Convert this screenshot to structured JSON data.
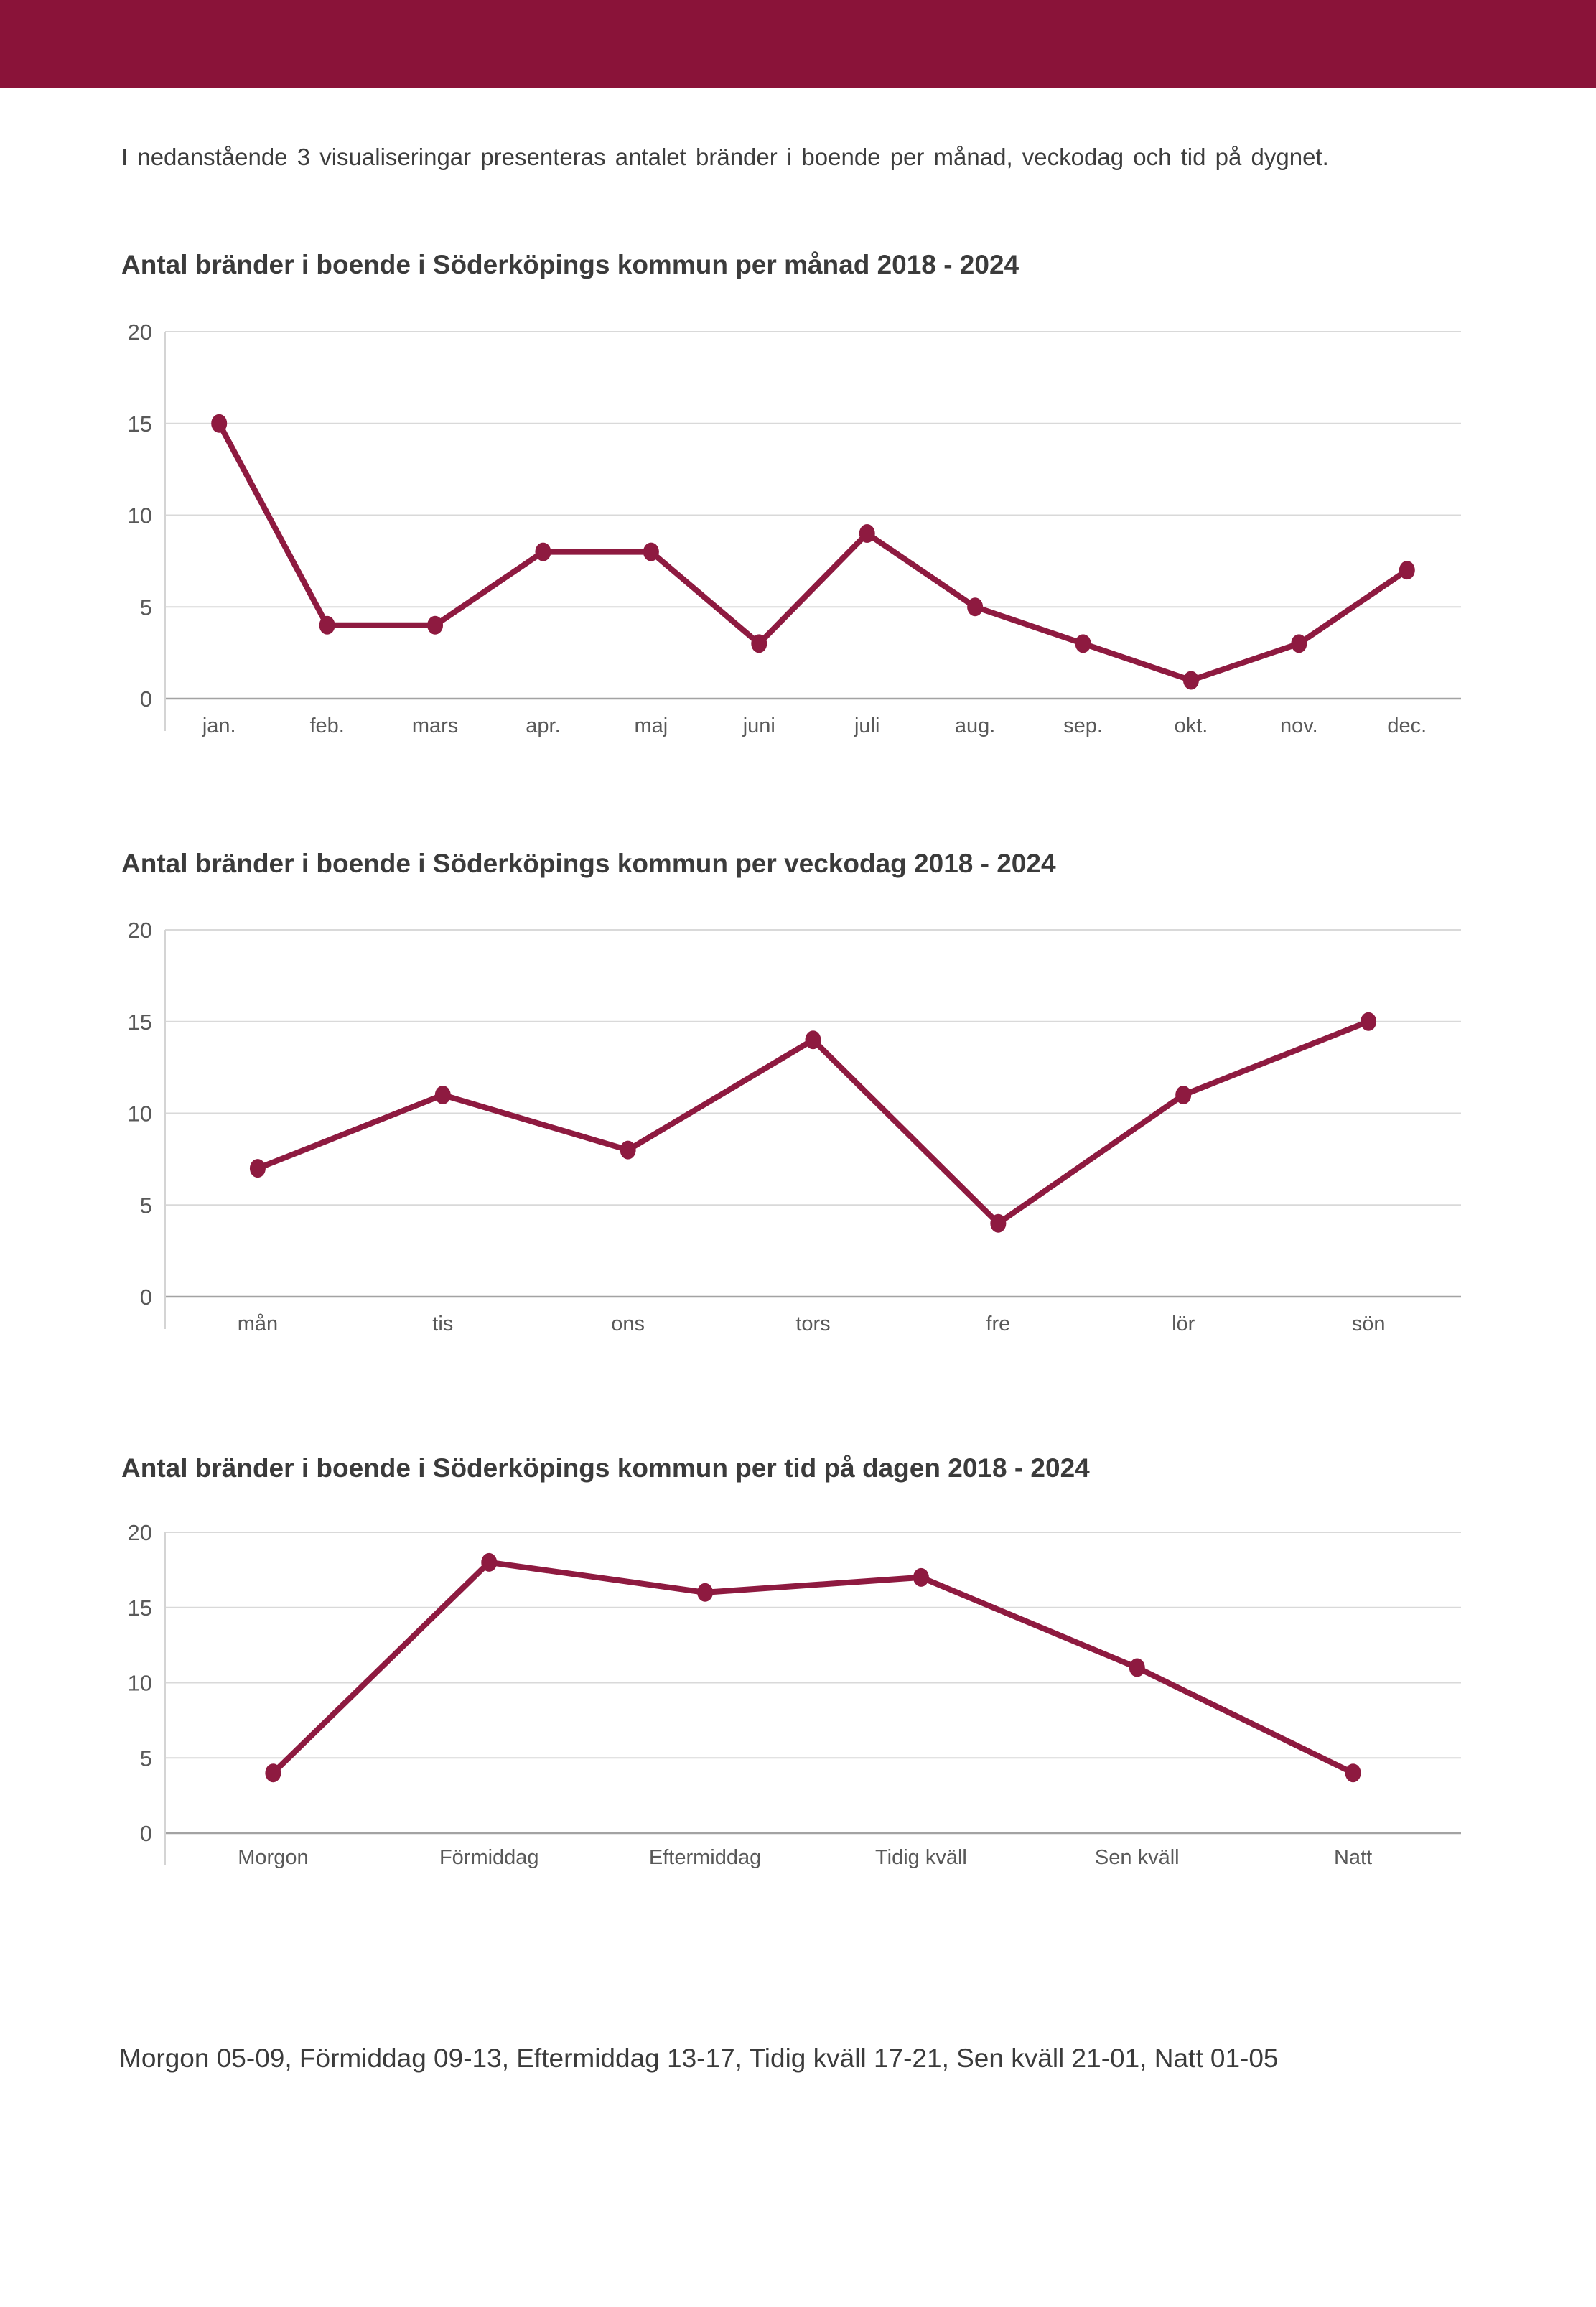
{
  "intro": {
    "text": "I nedanstående 3 visualiseringar presenteras antalet bränder i boende per månad, veckodag och tid på dygnet."
  },
  "footnote": {
    "text": "Morgon 05-09, Förmiddag 09-13, Eftermiddag 13-17, Tidig kväll 17-21, Sen kväll 21-01, Natt 01-05"
  },
  "colors": {
    "header_bar": "#8A1339",
    "accent_line": "#8E1A40",
    "grid_line": "#D9D9D9",
    "zero_axis_line": "#A3A3A3",
    "y_axis_line": "#D4D4D4",
    "tick_label": "#595959",
    "title_text": "#3B3B3B",
    "body_text": "#3D3D3D"
  },
  "chart_data": [
    {
      "type": "line",
      "title": "Antal bränder i boende i Söderköpings kommun per månad 2018 - 2024",
      "categories": [
        "jan.",
        "feb.",
        "mars",
        "apr.",
        "maj",
        "juni",
        "juli",
        "aug.",
        "sep.",
        "okt.",
        "nov.",
        "dec."
      ],
      "values": [
        15,
        4,
        4,
        8,
        8,
        3,
        9,
        5,
        3,
        1,
        3,
        7
      ],
      "xlabel": "",
      "ylabel": "",
      "ylim": [
        0,
        20
      ],
      "yticks": [
        0,
        5,
        10,
        15,
        20
      ],
      "grid": "horizontal",
      "legend": "none"
    },
    {
      "type": "line",
      "title": "Antal bränder i boende i Söderköpings kommun per veckodag 2018 - 2024",
      "categories": [
        "mån",
        "tis",
        "ons",
        "tors",
        "fre",
        "lör",
        "sön"
      ],
      "values": [
        7,
        11,
        8,
        14,
        4,
        11,
        15
      ],
      "xlabel": "",
      "ylabel": "",
      "ylim": [
        0,
        20
      ],
      "yticks": [
        0,
        5,
        10,
        15,
        20
      ],
      "grid": "horizontal",
      "legend": "none"
    },
    {
      "type": "line",
      "title": "Antal bränder i boende i Söderköpings kommun per tid på dagen 2018 - 2024",
      "categories": [
        "Morgon",
        "Förmiddag",
        "Eftermiddag",
        "Tidig kväll",
        "Sen kväll",
        "Natt"
      ],
      "values": [
        4,
        18,
        16,
        17,
        11,
        4
      ],
      "xlabel": "",
      "ylabel": "",
      "ylim": [
        0,
        20
      ],
      "yticks": [
        0,
        5,
        10,
        15,
        20
      ],
      "grid": "horizontal",
      "legend": "none"
    }
  ]
}
